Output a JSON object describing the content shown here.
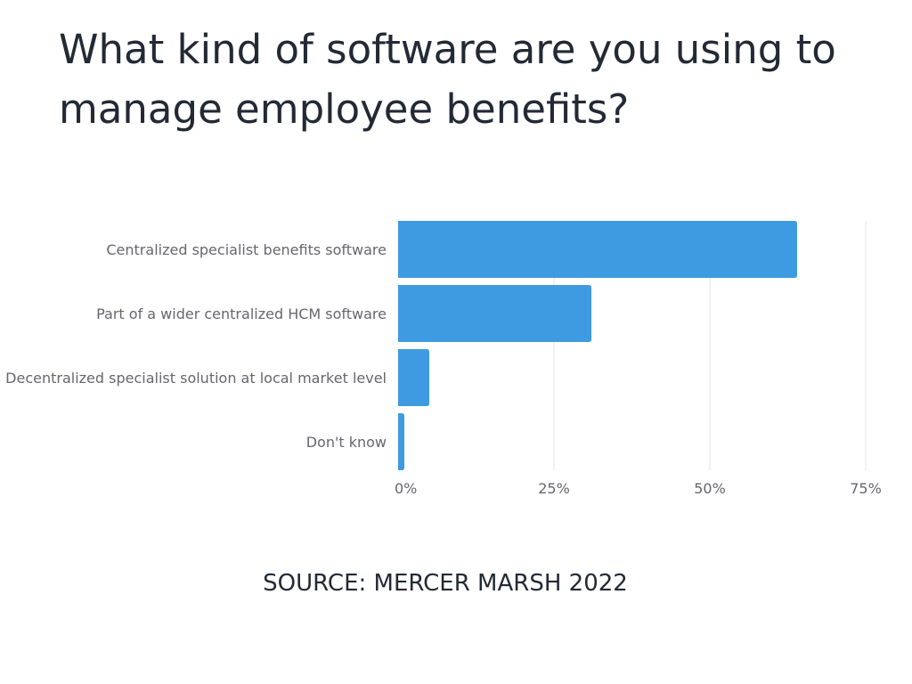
{
  "chart_data": {
    "type": "bar",
    "orientation": "horizontal",
    "title": "What kind of software are you using to manage employee benefits?",
    "categories": [
      "Centralized specialist benefits software",
      "Part of a wider centralized HCM software",
      "Decentralized specialist solution at local market level",
      "Don't know"
    ],
    "values": [
      64,
      31,
      5,
      1
    ],
    "xlim": [
      0,
      75
    ],
    "xticks": [
      0,
      25,
      50,
      75
    ],
    "xtick_labels": [
      "0%",
      "25%",
      "50%",
      "75%"
    ],
    "bar_color": "#3e9be2",
    "grid": true,
    "source": "SOURCE: MERCER MARSH 2022"
  }
}
